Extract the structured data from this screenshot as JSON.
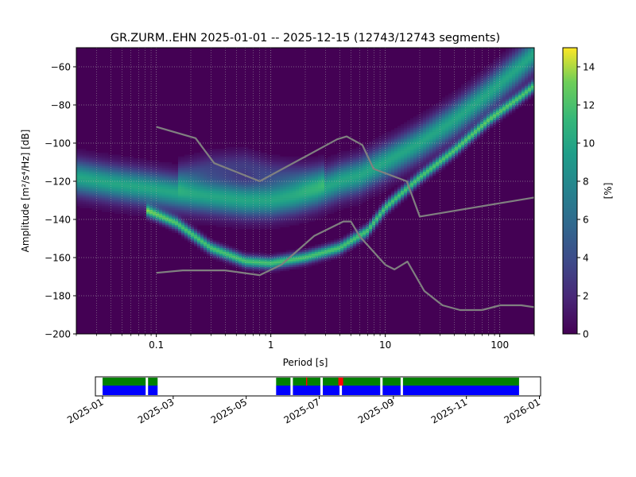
{
  "chart_data": [
    {
      "type": "heatmap",
      "title": "GR.ZURM..EHN   2025-01-01 -- 2025-12-15  (12743/12743 segments)",
      "xlabel": "Period [s]",
      "ylabel": "Amplitude [m²/s⁴/Hz] [dB]",
      "x_scale": "log",
      "xlim": [
        0.02,
        200
      ],
      "ylim": [
        -200,
        -50
      ],
      "x_ticks": [
        {
          "value": 0.1,
          "label": "0.1"
        },
        {
          "value": 1,
          "label": "1"
        },
        {
          "value": 10,
          "label": "10"
        },
        {
          "value": 100,
          "label": "100"
        }
      ],
      "y_ticks": [
        -200,
        -180,
        -160,
        -140,
        -120,
        -100,
        -80,
        -60
      ],
      "grid": true,
      "colorbar": {
        "label": "[%]",
        "min": 0,
        "max": 15,
        "ticks": [
          0,
          2,
          4,
          6,
          8,
          10,
          12,
          14
        ],
        "colormap": "viridis"
      },
      "density_bands": [
        {
          "name": "main-trend",
          "points": [
            [
              0.02,
              -118
            ],
            [
              0.04,
              -121
            ],
            [
              0.07,
              -123
            ],
            [
              0.15,
              -126
            ],
            [
              0.3,
              -128
            ],
            [
              0.6,
              -130
            ],
            [
              1,
              -130
            ],
            [
              1.6,
              -128
            ],
            [
              2.5,
              -125
            ],
            [
              4,
              -120
            ],
            [
              6,
              -117
            ],
            [
              10,
              -110
            ],
            [
              20,
              -100
            ],
            [
              40,
              -88
            ],
            [
              80,
              -74
            ],
            [
              150,
              -60
            ],
            [
              200,
              -53
            ]
          ],
          "width_db": 6,
          "peak_percent": 10
        },
        {
          "name": "upper-branch",
          "points": [
            [
              0.15,
              -118
            ],
            [
              0.3,
              -113
            ],
            [
              0.6,
              -112
            ],
            [
              1,
              -116
            ],
            [
              2,
              -118
            ],
            [
              3,
              -117
            ]
          ],
          "width_db": 5,
          "peak_percent": 3
        },
        {
          "name": "lower-diagonal",
          "points": [
            [
              0.08,
              -135
            ],
            [
              0.15,
              -142
            ],
            [
              0.3,
              -155
            ],
            [
              0.6,
              -162
            ],
            [
              1,
              -163
            ],
            [
              2,
              -160
            ],
            [
              4,
              -155
            ],
            [
              7,
              -146
            ],
            [
              10,
              -134
            ],
            [
              20,
              -118
            ],
            [
              40,
              -104
            ],
            [
              80,
              -88
            ],
            [
              150,
              -76
            ],
            [
              200,
              -70
            ]
          ],
          "width_db": 2,
          "peak_percent": 12
        }
      ],
      "noise_models": [
        {
          "name": "NHNM",
          "color": "#808080",
          "points": [
            [
              0.1,
              -91.5
            ],
            [
              0.22,
              -97.4
            ],
            [
              0.32,
              -110.5
            ],
            [
              0.8,
              -120
            ],
            [
              3.8,
              -98
            ],
            [
              4.6,
              -96.5
            ],
            [
              6.3,
              -101
            ],
            [
              7.9,
              -113.5
            ],
            [
              15.4,
              -120
            ],
            [
              20,
              -138.5
            ],
            [
              200,
              -128.5
            ]
          ]
        },
        {
          "name": "NLNM",
          "color": "#808080",
          "points": [
            [
              0.1,
              -168
            ],
            [
              0.17,
              -166.7
            ],
            [
              0.4,
              -166.7
            ],
            [
              0.8,
              -169.2
            ],
            [
              1.24,
              -163.7
            ],
            [
              2.4,
              -148.6
            ],
            [
              4.3,
              -141.1
            ],
            [
              5,
              -141.1
            ],
            [
              6,
              -149
            ],
            [
              10,
              -163.8
            ],
            [
              12,
              -166.2
            ],
            [
              15.6,
              -162.1
            ],
            [
              21.9,
              -177.5
            ],
            [
              31.6,
              -185
            ],
            [
              45,
              -187.5
            ],
            [
              70,
              -187.5
            ],
            [
              101,
              -185
            ],
            [
              154,
              -185
            ],
            [
              200,
              -186
            ]
          ]
        }
      ]
    },
    {
      "type": "coverage",
      "xlim": [
        "2024-12-26",
        "2026-01-02"
      ],
      "x_ticks": [
        "2025-01",
        "2025-03",
        "2025-05",
        "2025-07",
        "2025-09",
        "2025-11",
        "2026-01"
      ],
      "colors": {
        "data": "#0000ff",
        "processed": "#008000",
        "warning": "#ff0000"
      },
      "data_intervals": [
        [
          "2025-01-01",
          "2025-02-06"
        ],
        [
          "2025-02-08",
          "2025-02-16"
        ],
        [
          "2025-05-26",
          "2025-06-07"
        ],
        [
          "2025-06-09",
          "2025-07-02"
        ],
        [
          "2025-07-04",
          "2025-07-18"
        ],
        [
          "2025-07-20",
          "2025-08-21"
        ],
        [
          "2025-08-23",
          "2025-09-07"
        ],
        [
          "2025-09-09",
          "2025-12-15"
        ]
      ],
      "warning_intervals": [
        [
          "2025-06-20",
          "2025-06-21"
        ],
        [
          "2025-07-17",
          "2025-07-21"
        ]
      ]
    }
  ]
}
